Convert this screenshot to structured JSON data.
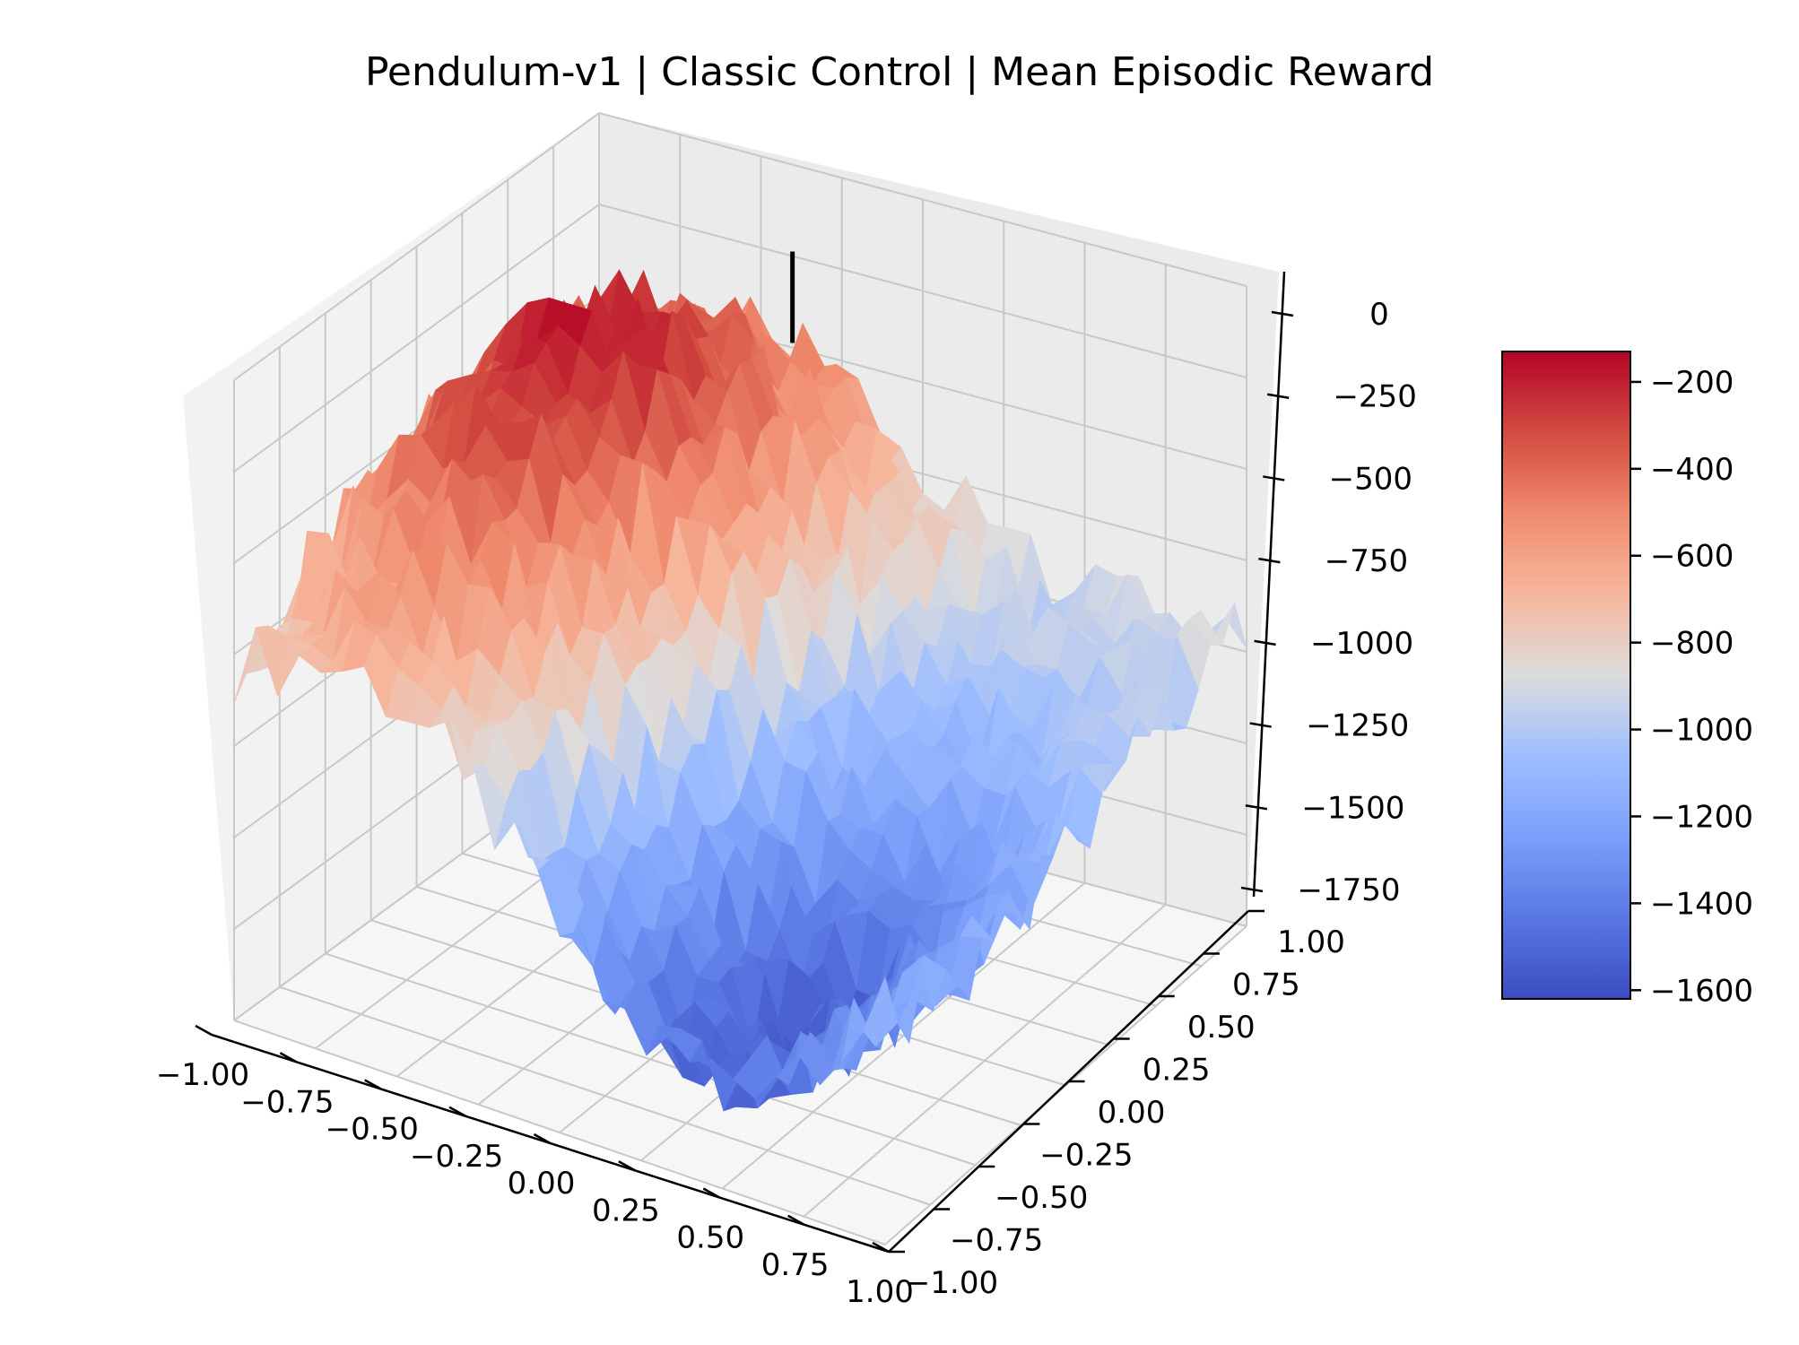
{
  "chart_data": {
    "type": "surface3d",
    "title": "Pendulum-v1 | Classic Control | Mean Episodic Reward",
    "xlabel": "",
    "ylabel": "",
    "zlabel": "",
    "xlim": [
      -1.0,
      1.0
    ],
    "ylim": [
      -1.0,
      1.0
    ],
    "zlim": [
      -1750,
      0
    ],
    "x_ticks": [
      "−1.00",
      "−0.75",
      "−0.50",
      "−0.25",
      "0.00",
      "0.25",
      "0.50",
      "0.75",
      "1.00"
    ],
    "y_ticks": [
      "−1.00",
      "−0.75",
      "−0.50",
      "−0.25",
      "0.00",
      "0.25",
      "0.50",
      "0.75",
      "1.00"
    ],
    "z_ticks": [
      "0",
      "−250",
      "−500",
      "−750",
      "−1000",
      "−1250",
      "−1500",
      "−1750"
    ],
    "grid": true,
    "colormap": "coolwarm",
    "surface": {
      "grid_size": 31,
      "value_range": [
        -1650,
        -100
      ],
      "peak": {
        "x": -0.5,
        "y": 0.1,
        "z": -120
      },
      "trough": {
        "x": 0.35,
        "y": -0.55,
        "z": -1620
      },
      "approx_profile_along_x_at_y0": [
        {
          "x": -1.0,
          "z": -900
        },
        {
          "x": -0.75,
          "z": -700
        },
        {
          "x": -0.5,
          "z": -150
        },
        {
          "x": -0.25,
          "z": -350
        },
        {
          "x": 0.0,
          "z": -800
        },
        {
          "x": 0.25,
          "z": -1300
        },
        {
          "x": 0.5,
          "z": -1550
        },
        {
          "x": 0.75,
          "z": -1350
        },
        {
          "x": 1.0,
          "z": -1100
        }
      ]
    },
    "marker": {
      "x": -0.15,
      "y": 0.55,
      "z_range": [
        -250,
        0
      ],
      "color": "#000000"
    },
    "colorbar": {
      "ticks": [
        "−200",
        "−400",
        "−600",
        "−800",
        "−1000",
        "−1200",
        "−1400",
        "−1600"
      ],
      "tick_values": [
        -200,
        -400,
        -600,
        -800,
        -1000,
        -1200,
        -1400,
        -1600
      ],
      "range": [
        -1620,
        -130
      ]
    }
  }
}
